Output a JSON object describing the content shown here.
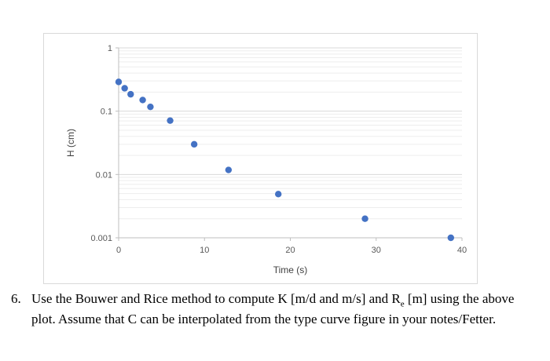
{
  "chart_data": {
    "type": "scatter",
    "title": "",
    "xlabel": "Time (s)",
    "ylabel": "H (cm)",
    "xlim": [
      0,
      40
    ],
    "ylim": [
      0.001,
      1
    ],
    "yscale": "log",
    "xticks": [
      "0",
      "10",
      "20",
      "30",
      "40"
    ],
    "yticks": [
      "1",
      "0.1",
      "0.01",
      "0.001"
    ],
    "grid": true,
    "marker_color": "#4472C4",
    "series": [
      {
        "x": [
          0,
          0.7,
          1.4,
          2.8,
          3.7,
          6,
          8.8,
          12.8,
          18.6,
          28.7,
          38.7
        ],
        "y": [
          0.29,
          0.23,
          0.185,
          0.15,
          0.117,
          0.071,
          0.03,
          0.0118,
          0.0049,
          0.002,
          0.001
        ]
      }
    ]
  },
  "question": {
    "number": "6.",
    "part1": "Use the Bouwer and Rice method to compute K [m/d and m/s] and R",
    "sub": "e",
    "part2": " [m] using the above plot. Assume that C can be interpolated from the type curve figure in your notes/Fetter."
  }
}
